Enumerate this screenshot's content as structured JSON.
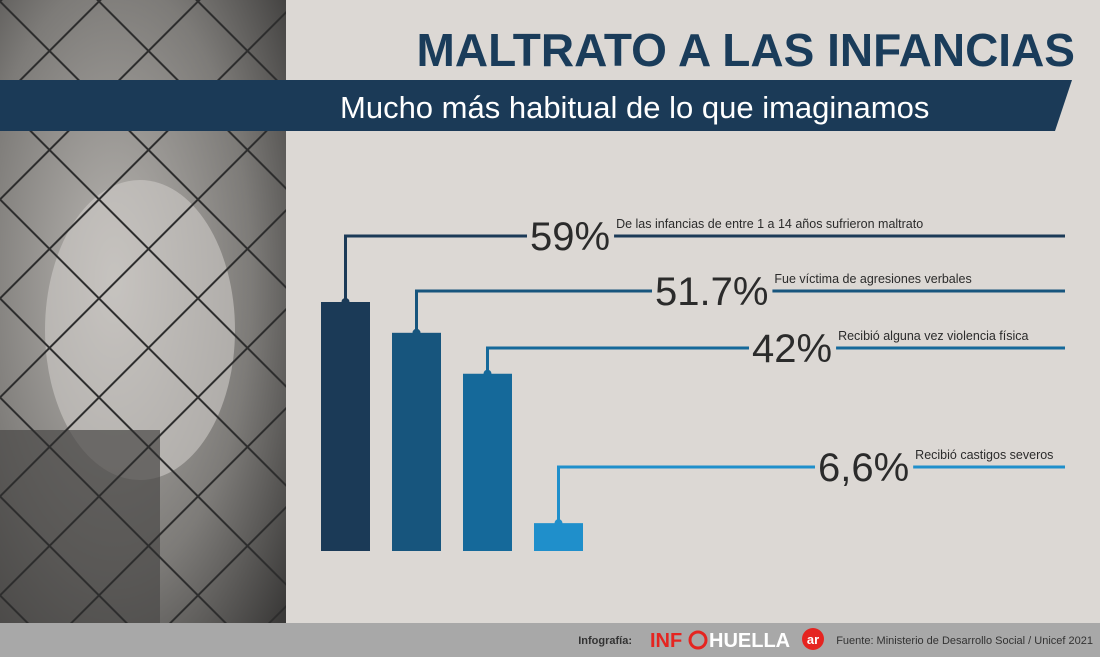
{
  "chart_data": {
    "type": "bar",
    "title": "MALTRATO A LAS INFANCIAS",
    "subtitle": "Mucho más habitual de lo que imaginamos",
    "categories": [
      "De las infancias de entre 1 a 14 años sufrieron maltrato",
      "Fue víctima de agresiones verbales",
      "Recibió alguna vez violencia física",
      "Recibió castigos severos"
    ],
    "values": [
      59,
      51.7,
      42,
      6.6
    ],
    "value_labels": [
      "59%",
      "51.7%",
      "42%",
      "6,6%"
    ],
    "colors": [
      "#1b3a57",
      "#17557d",
      "#15699a",
      "#1f8fcb"
    ]
  },
  "footer": {
    "credit_label": "Infografía:",
    "logo": [
      "INF",
      "HUELLA",
      "ar"
    ],
    "source": "Fuente: Ministerio de Desarrollo Social / Unicef 2021"
  }
}
